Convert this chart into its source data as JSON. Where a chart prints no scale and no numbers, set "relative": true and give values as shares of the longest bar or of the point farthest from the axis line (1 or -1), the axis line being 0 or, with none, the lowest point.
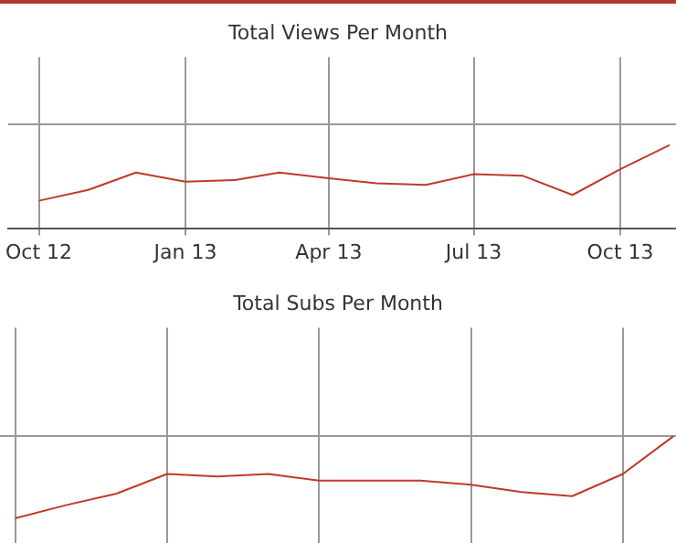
{
  "chart_data": [
    {
      "type": "line",
      "title": "Total Views Per Month",
      "relative": true,
      "grid": true,
      "color": "#c0392b",
      "x": [
        "2012-10",
        "2012-11",
        "2012-12",
        "2013-01",
        "2013-02",
        "2013-03",
        "2013-04",
        "2013-05",
        "2013-06",
        "2013-07",
        "2013-08",
        "2013-09",
        "2013-10",
        "2013-11"
      ],
      "values": [
        0.33,
        0.46,
        0.67,
        0.56,
        0.58,
        0.67,
        0.6,
        0.54,
        0.52,
        0.65,
        0.63,
        0.4,
        0.71,
        1
      ],
      "xlim": [
        "2012-09-12",
        "2013-11-05"
      ],
      "xticks": [
        {
          "value": "2012-10",
          "label": "Oct 12"
        },
        {
          "value": "2013-01",
          "label": "Jan 13"
        },
        {
          "value": "2013-04",
          "label": "Apr 13"
        },
        {
          "value": "2013-07",
          "label": "Jul 13"
        },
        {
          "value": "2013-10",
          "label": "Oct 13"
        }
      ]
    },
    {
      "type": "line",
      "title": "Total Subs Per Month",
      "relative": true,
      "grid": true,
      "color": "#c0392b",
      "categories": [
        null,
        null,
        null,
        null,
        null,
        null,
        null,
        null,
        null,
        null,
        null,
        null,
        null,
        null
      ],
      "values": [
        0,
        0.16,
        0.3,
        0.54,
        0.51,
        0.54,
        0.46,
        0.46,
        0.46,
        0.41,
        0.32,
        0.27,
        0.54,
        1
      ]
    }
  ]
}
